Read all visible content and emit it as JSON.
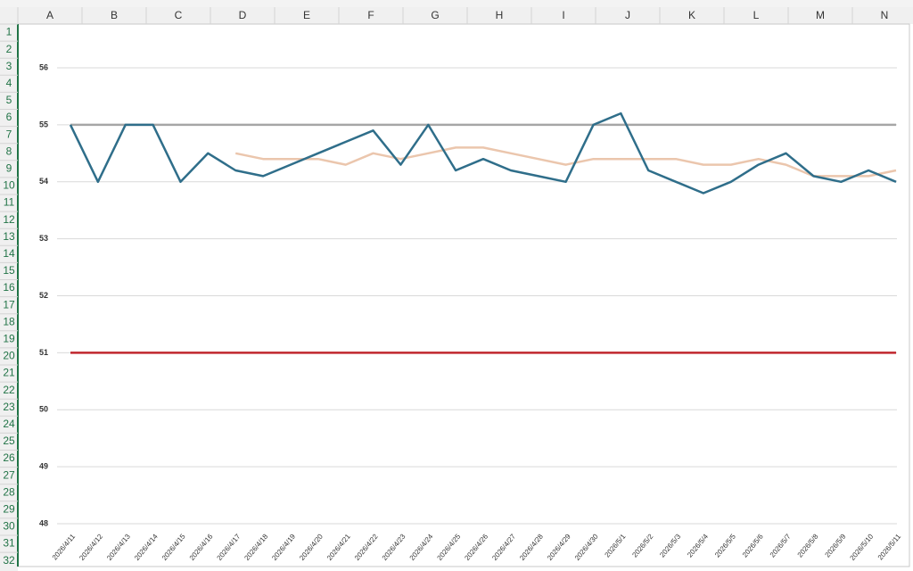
{
  "sheet": {
    "columns": [
      "A",
      "B",
      "C",
      "D",
      "E",
      "F",
      "G",
      "H",
      "I",
      "J",
      "K",
      "L",
      "M",
      "N"
    ],
    "rows": [
      "1",
      "2",
      "3",
      "4",
      "5",
      "6",
      "7",
      "8",
      "9",
      "10",
      "11",
      "12",
      "13",
      "14",
      "15",
      "16",
      "17",
      "18",
      "19",
      "20",
      "21",
      "22",
      "23",
      "24",
      "25",
      "26",
      "27",
      "28",
      "29",
      "30",
      "31",
      "32"
    ]
  },
  "chart_data": {
    "type": "line",
    "categories": [
      "2026/4/11",
      "2026/4/12",
      "2026/4/13",
      "2026/4/14",
      "2026/4/15",
      "2026/4/16",
      "2026/4/17",
      "2026/4/18",
      "2026/4/19",
      "2026/4/20",
      "2026/4/21",
      "2026/4/22",
      "2026/4/23",
      "2026/4/24",
      "2026/4/25",
      "2026/4/26",
      "2026/4/27",
      "2026/4/28",
      "2026/4/29",
      "2026/4/30",
      "2026/5/1",
      "2026/5/2",
      "2026/5/3",
      "2026/5/4",
      "2026/5/5",
      "2026/5/6",
      "2026/5/7",
      "2026/5/8",
      "2026/5/9",
      "2026/5/10",
      "2026/5/11"
    ],
    "series": [
      {
        "color": "#a6a6a6",
        "values": [
          55,
          55,
          55,
          55,
          55,
          55,
          55,
          55,
          55,
          55,
          55,
          55,
          55,
          55,
          55,
          55,
          55,
          55,
          55,
          55,
          55,
          55,
          55,
          55,
          55,
          55,
          55,
          55,
          55,
          55,
          55
        ]
      },
      {
        "color": "#c0262d",
        "values": [
          51,
          51,
          51,
          51,
          51,
          51,
          51,
          51,
          51,
          51,
          51,
          51,
          51,
          51,
          51,
          51,
          51,
          51,
          51,
          51,
          51,
          51,
          51,
          51,
          51,
          51,
          51,
          51,
          51,
          51,
          51
        ]
      },
      {
        "color": "#ebc6ad",
        "values": [
          null,
          null,
          null,
          null,
          null,
          null,
          54.5,
          54.4,
          54.4,
          54.4,
          54.3,
          54.5,
          54.4,
          54.5,
          54.6,
          54.6,
          54.5,
          54.4,
          54.3,
          54.4,
          54.4,
          54.4,
          54.4,
          54.3,
          54.3,
          54.4,
          54.3,
          54.1,
          54.1,
          54.1,
          54.2
        ]
      },
      {
        "color": "#2f6e8a",
        "values": [
          55,
          54,
          55,
          55,
          54,
          54.5,
          54.2,
          54.1,
          54.3,
          54.5,
          54.7,
          54.9,
          54.3,
          55,
          54.2,
          54.4,
          54.2,
          54.1,
          54,
          55,
          55.2,
          54.2,
          54,
          53.8,
          54,
          54.3,
          54.5,
          54.1,
          54,
          54.2,
          54
        ]
      }
    ],
    "ylim": [
      48,
      56
    ],
    "yticks": [
      48,
      49,
      50,
      51,
      52,
      53,
      54,
      55,
      56
    ],
    "grid": true
  }
}
